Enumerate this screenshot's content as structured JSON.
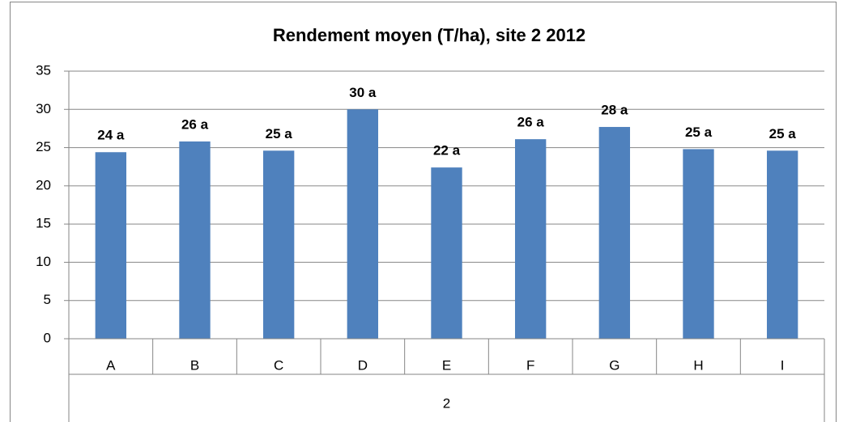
{
  "chart_data": {
    "type": "bar",
    "title": "Rendement moyen (T/ha), site 2 2012",
    "categories": [
      "A",
      "B",
      "C",
      "D",
      "E",
      "F",
      "G",
      "H",
      "I"
    ],
    "group_label": "2",
    "values": [
      24.4,
      25.8,
      24.6,
      30.0,
      22.4,
      26.1,
      27.7,
      24.8,
      24.6
    ],
    "value_labels": [
      "24 a",
      "26 a",
      "25 a",
      "30 a",
      "22 a",
      "26 a",
      "28 a",
      "25 a",
      "25 a"
    ],
    "color": "#4f81bd",
    "ylim": [
      0,
      35
    ],
    "yticks": [
      0,
      5,
      10,
      15,
      20,
      25,
      30,
      35
    ],
    "grid": true
  }
}
